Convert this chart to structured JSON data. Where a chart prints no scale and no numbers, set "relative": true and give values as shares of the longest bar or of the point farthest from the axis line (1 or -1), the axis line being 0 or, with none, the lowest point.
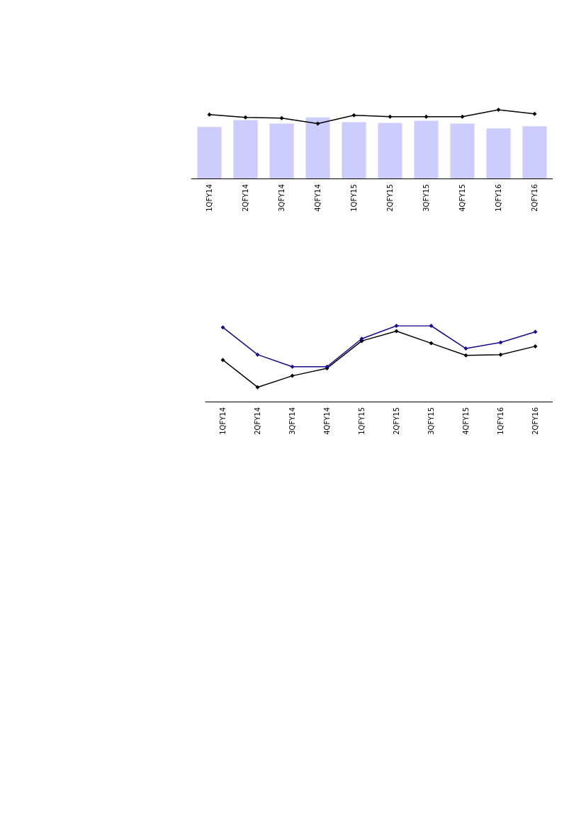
{
  "chart_data": [
    {
      "type": "bar",
      "relative": true,
      "marker": "diamond",
      "categories": [
        "1QFY14",
        "2QFY14",
        "3QFY14",
        "4QFY14",
        "1QFY15",
        "2QFY15",
        "3QFY15",
        "4QFY15",
        "1QFY16",
        "2QFY16"
      ],
      "series": [
        {
          "type": "bar",
          "color": "#ccccff",
          "values": [
            0.75,
            0.85,
            0.8,
            0.89,
            0.82,
            0.81,
            0.84,
            0.8,
            0.73,
            0.76
          ]
        },
        {
          "type": "line",
          "color": "#000000",
          "values": [
            0.93,
            0.89,
            0.88,
            0.8,
            0.92,
            0.9,
            0.9,
            0.9,
            1,
            0.94
          ]
        }
      ]
    },
    {
      "type": "line",
      "relative": true,
      "marker": "diamond",
      "categories": [
        "1QFY14",
        "2QFY14",
        "3QFY14",
        "4QFY14",
        "1QFY15",
        "2QFY15",
        "3QFY15",
        "4QFY15",
        "1QFY16",
        "2QFY16"
      ],
      "series": [
        {
          "color": "#000000",
          "values": [
            0.55,
            0.19,
            0.34,
            0.44,
            0.8,
            0.93,
            0.77,
            0.61,
            0.62,
            0.73
          ]
        },
        {
          "color": "#1a0a8c",
          "values": [
            0.98,
            0.62,
            0.46,
            0.46,
            0.83,
            1,
            1,
            0.7,
            0.78,
            0.92
          ]
        }
      ]
    }
  ]
}
